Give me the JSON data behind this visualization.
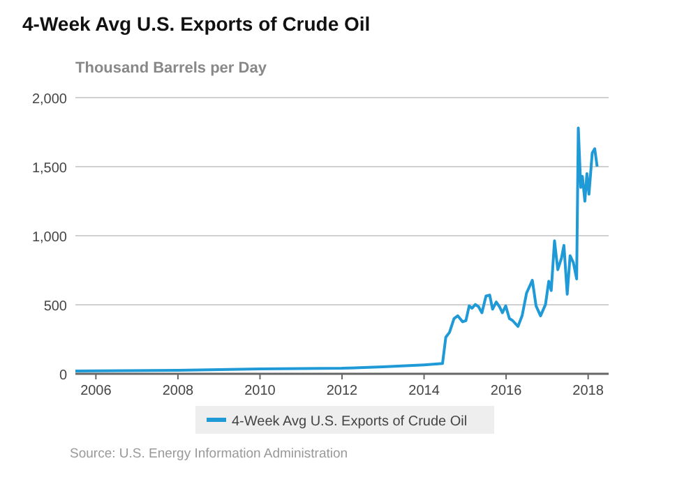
{
  "chart_data": {
    "type": "line",
    "title": "4-Week Avg U.S. Exports of Crude Oil",
    "ylabel": "Thousand Barrels per Day",
    "annotations": [
      "Source: U.S. Energy Information Administration"
    ],
    "xlim": [
      2005.5,
      2018.5
    ],
    "xticks": [
      2006,
      2008,
      2010,
      2012,
      2014,
      2016,
      2018
    ],
    "ylim": [
      0,
      2000
    ],
    "yticks": [
      {
        "value": 0,
        "label": "0"
      },
      {
        "value": 500,
        "label": "500"
      },
      {
        "value": 1000,
        "label": "1,000"
      },
      {
        "value": 1500,
        "label": "1,500"
      },
      {
        "value": 2000,
        "label": "2,000"
      }
    ],
    "grid": "y",
    "legend": "bottom",
    "series": [
      {
        "name": "4-Week Avg U.S. Exports of Crude Oil",
        "color": "#1f9ad6",
        "x": [
          2005.5,
          2008,
          2010,
          2012,
          2013,
          2014,
          2014.45,
          2014.53,
          2014.62,
          2014.73,
          2014.82,
          2014.94,
          2015.02,
          2015.1,
          2015.17,
          2015.25,
          2015.33,
          2015.41,
          2015.51,
          2015.6,
          2015.67,
          2015.76,
          2015.84,
          2015.91,
          2015.99,
          2016.08,
          2016.16,
          2016.29,
          2016.39,
          2016.5,
          2016.64,
          2016.73,
          2016.84,
          2016.96,
          2017.04,
          2017.1,
          2017.18,
          2017.26,
          2017.35,
          2017.41,
          2017.49,
          2017.56,
          2017.64,
          2017.72,
          2017.76,
          2017.82,
          2017.86,
          2017.92,
          2017.97,
          2018.02,
          2018.1,
          2018.16,
          2018.22
        ],
        "values": [
          20,
          25,
          35,
          40,
          50,
          65,
          74,
          265,
          300,
          400,
          420,
          377,
          385,
          492,
          475,
          502,
          485,
          442,
          563,
          570,
          468,
          520,
          485,
          442,
          492,
          400,
          385,
          343,
          420,
          586,
          677,
          492,
          420,
          502,
          670,
          603,
          963,
          754,
          838,
          930,
          576,
          855,
          805,
          687,
          1780,
          1350,
          1430,
          1250,
          1450,
          1300,
          1600,
          1630,
          1500
        ]
      }
    ]
  }
}
